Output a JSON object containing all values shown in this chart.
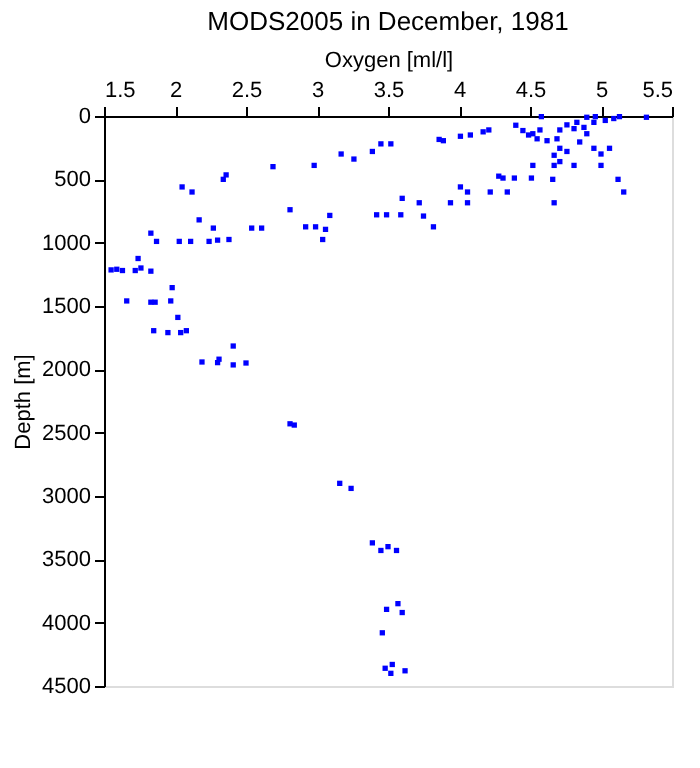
{
  "chart_data": {
    "type": "scatter",
    "title": "MODS2005 in December, 1981",
    "xlabel": "Oxygen [ml/l]",
    "ylabel": "Depth [m]",
    "color": "#0000ff",
    "marker": "square",
    "grid": false,
    "xlim": [
      1.5,
      5.5
    ],
    "xticks": [
      1.5,
      2,
      2.5,
      3,
      3.5,
      4,
      4.5,
      5,
      5.5
    ],
    "ylim": [
      4500,
      0
    ],
    "yticks": [
      0,
      500,
      1000,
      1500,
      2000,
      2500,
      3000,
      3500,
      4000,
      4500
    ],
    "x": [
      5.32,
      5.13,
      4.9,
      4.95,
      4.88,
      4.81,
      4.76,
      4.71,
      5.09,
      5.03,
      4.96,
      4.83,
      4.58,
      4.4,
      4.45,
      4.57,
      4.52,
      4.49,
      4.55,
      4.62,
      4.69,
      4.71,
      4.76,
      4.67,
      4.71,
      4.81,
      4.67,
      4.85,
      4.9,
      4.95,
      5.0,
      5.06,
      5.0,
      4.52,
      4.66,
      4.51,
      4.39,
      4.28,
      4.31,
      5.12,
      5.16,
      4.67,
      4.21,
      4.17,
      4.08,
      4.01,
      3.89,
      3.86,
      4.01,
      4.06,
      4.22,
      4.34,
      4.06,
      3.94,
      3.52,
      3.45,
      3.39,
      3.26,
      3.17,
      2.98,
      2.69,
      3.6,
      3.72,
      3.75,
      3.82,
      3.59,
      3.49,
      3.42,
      3.09,
      3.06,
      2.99,
      2.92,
      3.04,
      2.81,
      2.61,
      2.54,
      2.36,
      2.34,
      2.12,
      2.05,
      2.17,
      2.27,
      2.38,
      2.3,
      2.24,
      2.11,
      2.03,
      1.87,
      1.83,
      1.98,
      1.74,
      1.76,
      1.72,
      1.83,
      1.55,
      1.59,
      1.63,
      1.66,
      1.83,
      1.86,
      1.97,
      2.02,
      1.85,
      1.95,
      2.04,
      2.08,
      2.19,
      2.3,
      2.31,
      2.41,
      2.41,
      2.5,
      2.81,
      2.84,
      3.16,
      3.24,
      3.39,
      3.45,
      3.5,
      3.56,
      3.49,
      3.57,
      3.6,
      3.46,
      3.48,
      3.53,
      3.52,
      3.62
    ],
    "values": [
      10,
      5,
      10,
      50,
      90,
      100,
      70,
      110,
      20,
      35,
      5,
      50,
      5,
      73,
      115,
      110,
      140,
      150,
      180,
      195,
      180,
      255,
      280,
      310,
      360,
      390,
      390,
      205,
      140,
      255,
      300,
      255,
      390,
      390,
      500,
      490,
      490,
      475,
      490,
      500,
      600,
      685,
      110,
      125,
      150,
      160,
      195,
      185,
      560,
      600,
      600,
      600,
      685,
      685,
      220,
      220,
      280,
      340,
      300,
      390,
      400,
      650,
      685,
      790,
      875,
      780,
      780,
      780,
      785,
      895,
      875,
      875,
      975,
      740,
      885,
      885,
      465,
      500,
      600,
      560,
      820,
      885,
      975,
      980,
      990,
      990,
      990,
      990,
      925,
      1355,
      1125,
      1200,
      1220,
      1225,
      1215,
      1210,
      1220,
      1460,
      1470,
      1470,
      1460,
      1590,
      1695,
      1710,
      1710,
      1695,
      1942,
      1947,
      1920,
      1816,
      1965,
      1950,
      2430,
      2440,
      2900,
      2940,
      3370,
      3430,
      3400,
      3430,
      3895,
      3850,
      3920,
      4080,
      4360,
      4330,
      4400,
      4380
    ]
  }
}
